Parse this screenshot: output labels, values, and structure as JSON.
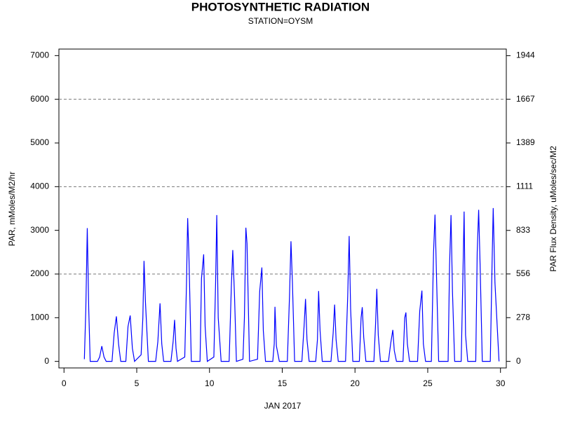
{
  "chart_data": {
    "type": "line",
    "title": "PHOTOSYNTHETIC RADIATION",
    "subtitle": "STATION=OYSM",
    "x_label": "JAN 2017",
    "y_label": "PAR, mMoles/M2/hr",
    "y2_label": "PAR Flux Density, uMoles/sec/M2",
    "xlim": [
      -0.35,
      30.4
    ],
    "xticks": [
      0,
      5,
      10,
      15,
      20,
      25,
      30
    ],
    "ylim": [
      -150,
      7150
    ],
    "yticks": [
      0,
      1000,
      2000,
      3000,
      4000,
      5000,
      6000,
      7000
    ],
    "y2lim": [
      -41.67,
      1986.1
    ],
    "y2ticks": [
      0,
      278,
      556,
      833,
      1111,
      1389,
      1667,
      1944
    ],
    "grid_values": [
      2000,
      4000,
      6000
    ],
    "series": [
      {
        "name": "PAR",
        "color": "#0000ff",
        "x": [
          1.4,
          1.5,
          1.6,
          1.7,
          1.8,
          2.3,
          2.45,
          2.6,
          2.75,
          2.9,
          3.3,
          3.45,
          3.6,
          3.75,
          3.9,
          4.25,
          4.4,
          4.55,
          4.7,
          4.85,
          5.3,
          5.42,
          5.5,
          5.6,
          5.8,
          6.3,
          6.45,
          6.6,
          6.72,
          6.85,
          7.35,
          7.5,
          7.6,
          7.7,
          7.8,
          8.3,
          8.42,
          8.5,
          8.58,
          8.75,
          9.35,
          9.45,
          9.6,
          9.7,
          9.85,
          10.3,
          10.42,
          10.5,
          10.6,
          10.8,
          11.35,
          11.5,
          11.6,
          11.72,
          11.85,
          12.3,
          12.4,
          12.5,
          12.58,
          12.75,
          13.3,
          13.45,
          13.6,
          13.7,
          13.85,
          14.35,
          14.45,
          14.5,
          14.6,
          14.8,
          15.35,
          15.5,
          15.6,
          15.7,
          15.85,
          16.35,
          16.5,
          16.6,
          16.7,
          16.85,
          17.3,
          17.42,
          17.5,
          17.6,
          17.75,
          18.35,
          18.5,
          18.6,
          18.7,
          18.85,
          19.35,
          19.5,
          19.6,
          19.7,
          19.85,
          20.3,
          20.42,
          20.5,
          20.6,
          20.75,
          21.3,
          21.42,
          21.5,
          21.6,
          21.75,
          22.3,
          22.45,
          22.6,
          22.7,
          22.85,
          23.3,
          23.42,
          23.5,
          23.6,
          23.75,
          24.3,
          24.45,
          24.6,
          24.7,
          24.85,
          25.25,
          25.4,
          25.5,
          25.6,
          25.75,
          26.4,
          26.5,
          26.6,
          26.7,
          26.85,
          27.3,
          27.42,
          27.5,
          27.6,
          27.75,
          28.3,
          28.4,
          28.5,
          28.6,
          28.75,
          29.3,
          29.42,
          29.5,
          29.62,
          29.9
        ],
        "values": [
          50,
          1200,
          3050,
          1200,
          0,
          0,
          100,
          350,
          100,
          0,
          0,
          650,
          1030,
          400,
          0,
          0,
          800,
          1050,
          300,
          0,
          150,
          1000,
          2300,
          1350,
          0,
          0,
          450,
          1330,
          400,
          0,
          0,
          450,
          950,
          300,
          0,
          100,
          1800,
          3280,
          2500,
          0,
          0,
          1900,
          2450,
          800,
          0,
          100,
          1800,
          3350,
          1000,
          0,
          0,
          1700,
          2550,
          1500,
          0,
          50,
          1000,
          3060,
          2700,
          0,
          50,
          1600,
          2150,
          700,
          0,
          0,
          400,
          1250,
          350,
          0,
          0,
          1500,
          2750,
          1800,
          0,
          0,
          800,
          1430,
          500,
          0,
          0,
          500,
          1610,
          700,
          0,
          0,
          650,
          1300,
          500,
          0,
          0,
          1500,
          2870,
          1200,
          0,
          0,
          1000,
          1240,
          550,
          0,
          0,
          900,
          1660,
          600,
          0,
          0,
          400,
          720,
          250,
          0,
          0,
          1000,
          1120,
          400,
          0,
          0,
          1150,
          1620,
          400,
          0,
          0,
          2500,
          3360,
          2000,
          0,
          0,
          2200,
          3350,
          1600,
          0,
          0,
          2000,
          3430,
          600,
          0,
          0,
          2500,
          3470,
          2200,
          0,
          0,
          2200,
          3510,
          1800,
          0
        ]
      }
    ]
  }
}
